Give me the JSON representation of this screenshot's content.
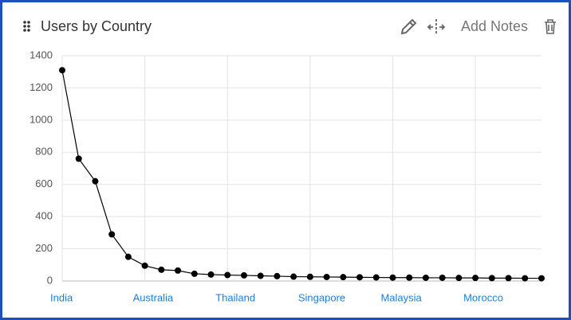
{
  "chart_data": {
    "type": "line",
    "title": "Users by Country",
    "categories": [
      "India",
      null,
      null,
      null,
      null,
      "Australia",
      null,
      null,
      null,
      null,
      "Thailand",
      null,
      null,
      null,
      null,
      "Singapore",
      null,
      null,
      null,
      null,
      "Malaysia",
      null,
      null,
      null,
      null,
      "Morocco",
      null,
      null,
      null,
      null
    ],
    "values": [
      1310,
      760,
      620,
      290,
      150,
      95,
      70,
      65,
      45,
      40,
      37,
      35,
      32,
      30,
      27,
      26,
      25,
      24,
      23,
      22,
      21,
      21,
      20,
      20,
      19,
      19,
      18,
      18,
      17,
      17
    ],
    "color": "#000000",
    "ylim": [
      0,
      1400
    ],
    "yticks": [
      0,
      200,
      400,
      600,
      800,
      1000,
      1200,
      1400
    ],
    "grid": true
  },
  "header": {
    "add_notes": "Add Notes"
  }
}
